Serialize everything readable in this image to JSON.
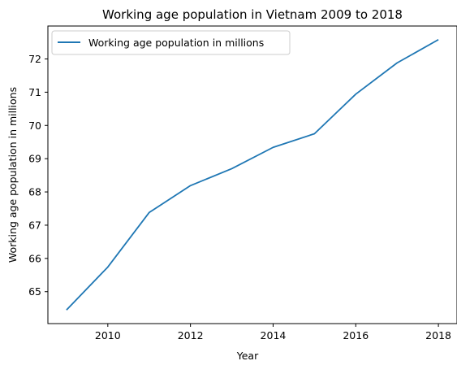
{
  "chart_data": {
    "type": "line",
    "title": "Working age population in Vietnam 2009 to 2018",
    "xlabel": "Year",
    "ylabel": "Working age population in millions",
    "x": [
      2009,
      2010,
      2011,
      2012,
      2013,
      2014,
      2015,
      2016,
      2017,
      2018
    ],
    "series": [
      {
        "name": "Working age population in millions",
        "color": "#1f77b4",
        "values": [
          64.45,
          65.74,
          67.38,
          68.19,
          68.7,
          69.34,
          69.75,
          70.94,
          71.88,
          72.58
        ]
      }
    ],
    "xlim": [
      2008.55,
      2018.45
    ],
    "ylim": [
      64.04,
      72.99
    ],
    "xticks": [
      2010,
      2012,
      2014,
      2016,
      2018
    ],
    "yticks": [
      65,
      66,
      67,
      68,
      69,
      70,
      71,
      72
    ],
    "grid": false,
    "legend": "top-left"
  }
}
